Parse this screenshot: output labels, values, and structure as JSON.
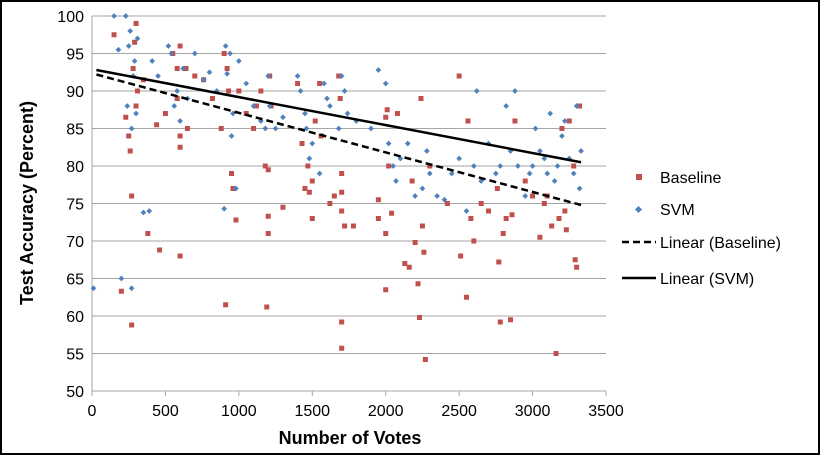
{
  "chart_data": {
    "type": "scatter",
    "title": "",
    "xlabel": "Number of Votes",
    "ylabel": "Test Accuracy (Percent)",
    "xlim": [
      0,
      3500
    ],
    "ylim": [
      50,
      100
    ],
    "xticks": [
      0,
      500,
      1000,
      1500,
      2000,
      2500,
      3000,
      3500
    ],
    "yticks": [
      50,
      55,
      60,
      65,
      70,
      75,
      80,
      85,
      90,
      95,
      100
    ],
    "grid": "horizontal",
    "legend_position": "right",
    "colors": {
      "baseline": "#c0504d",
      "svm": "#4f81bd",
      "trend": "#000000"
    },
    "series": [
      {
        "name": "Baseline",
        "marker": "square",
        "points": [
          [
            150,
            97.5
          ],
          [
            200,
            63.3
          ],
          [
            230,
            86.5
          ],
          [
            250,
            84
          ],
          [
            260,
            82
          ],
          [
            270,
            76
          ],
          [
            270,
            58.8
          ],
          [
            280,
            93
          ],
          [
            290,
            96.5
          ],
          [
            300,
            99
          ],
          [
            300,
            88
          ],
          [
            310,
            90
          ],
          [
            350,
            91.5
          ],
          [
            380,
            71
          ],
          [
            440,
            85.5
          ],
          [
            460,
            68.8
          ],
          [
            500,
            87
          ],
          [
            550,
            95
          ],
          [
            580,
            93
          ],
          [
            580,
            89
          ],
          [
            600,
            84
          ],
          [
            600,
            82.5
          ],
          [
            600,
            96
          ],
          [
            600,
            68
          ],
          [
            640,
            93
          ],
          [
            650,
            85
          ],
          [
            700,
            92
          ],
          [
            760,
            91.5
          ],
          [
            820,
            89
          ],
          [
            880,
            85
          ],
          [
            900,
            95
          ],
          [
            910,
            61.5
          ],
          [
            920,
            93
          ],
          [
            930,
            90
          ],
          [
            950,
            79
          ],
          [
            960,
            77
          ],
          [
            980,
            72.8
          ],
          [
            1000,
            90
          ],
          [
            1050,
            87
          ],
          [
            1100,
            85
          ],
          [
            1120,
            88
          ],
          [
            1150,
            90
          ],
          [
            1180,
            80
          ],
          [
            1190,
            61.2
          ],
          [
            1200,
            79.5
          ],
          [
            1200,
            73.3
          ],
          [
            1200,
            71
          ],
          [
            1210,
            92
          ],
          [
            1220,
            88
          ],
          [
            1300,
            74.5
          ],
          [
            1400,
            91
          ],
          [
            1430,
            83
          ],
          [
            1450,
            77
          ],
          [
            1470,
            80
          ],
          [
            1480,
            76.5
          ],
          [
            1500,
            73
          ],
          [
            1500,
            78
          ],
          [
            1520,
            86
          ],
          [
            1550,
            91
          ],
          [
            1560,
            84
          ],
          [
            1620,
            75
          ],
          [
            1650,
            76
          ],
          [
            1680,
            92
          ],
          [
            1690,
            89
          ],
          [
            1700,
            79
          ],
          [
            1700,
            76.5
          ],
          [
            1700,
            74
          ],
          [
            1700,
            59.2
          ],
          [
            1700,
            55.7
          ],
          [
            1720,
            72
          ],
          [
            1780,
            72
          ],
          [
            1950,
            75.5
          ],
          [
            1950,
            73
          ],
          [
            2000,
            86.5
          ],
          [
            2000,
            71
          ],
          [
            2000,
            63.5
          ],
          [
            2010,
            87.5
          ],
          [
            2020,
            80
          ],
          [
            2040,
            73.7
          ],
          [
            2080,
            87
          ],
          [
            2130,
            67
          ],
          [
            2160,
            66.5
          ],
          [
            2180,
            78
          ],
          [
            2200,
            69.8
          ],
          [
            2220,
            64.3
          ],
          [
            2230,
            59.8
          ],
          [
            2240,
            89
          ],
          [
            2250,
            72
          ],
          [
            2260,
            68.5
          ],
          [
            2270,
            54.2
          ],
          [
            2300,
            80
          ],
          [
            2420,
            75
          ],
          [
            2500,
            92
          ],
          [
            2510,
            68
          ],
          [
            2550,
            62.5
          ],
          [
            2560,
            86
          ],
          [
            2580,
            73
          ],
          [
            2600,
            70
          ],
          [
            2650,
            75
          ],
          [
            2700,
            74
          ],
          [
            2760,
            77
          ],
          [
            2770,
            67.2
          ],
          [
            2780,
            59.2
          ],
          [
            2800,
            71
          ],
          [
            2820,
            73
          ],
          [
            2850,
            59.5
          ],
          [
            2860,
            73.5
          ],
          [
            2880,
            86
          ],
          [
            2950,
            78
          ],
          [
            3000,
            76
          ],
          [
            3050,
            70.5
          ],
          [
            3080,
            75
          ],
          [
            3100,
            76
          ],
          [
            3130,
            72
          ],
          [
            3160,
            55
          ],
          [
            3180,
            73
          ],
          [
            3200,
            85
          ],
          [
            3220,
            74
          ],
          [
            3230,
            71.5
          ],
          [
            3250,
            86
          ],
          [
            3280,
            80
          ],
          [
            3290,
            67.5
          ],
          [
            3300,
            66.5
          ],
          [
            3320,
            88
          ]
        ]
      },
      {
        "name": "SVM",
        "marker": "diamond",
        "points": [
          [
            10,
            63.7
          ],
          [
            150,
            100
          ],
          [
            180,
            95.5
          ],
          [
            200,
            65
          ],
          [
            230,
            100
          ],
          [
            240,
            88
          ],
          [
            250,
            96
          ],
          [
            260,
            98
          ],
          [
            270,
            63.7
          ],
          [
            270,
            85
          ],
          [
            280,
            92
          ],
          [
            290,
            94
          ],
          [
            300,
            87
          ],
          [
            310,
            97
          ],
          [
            350,
            73.8
          ],
          [
            390,
            74
          ],
          [
            410,
            94
          ],
          [
            450,
            92
          ],
          [
            520,
            96
          ],
          [
            540,
            95
          ],
          [
            560,
            88
          ],
          [
            580,
            90
          ],
          [
            600,
            86
          ],
          [
            620,
            93
          ],
          [
            650,
            89
          ],
          [
            700,
            95
          ],
          [
            760,
            91.5
          ],
          [
            800,
            92.5
          ],
          [
            850,
            90
          ],
          [
            900,
            74.3
          ],
          [
            910,
            96
          ],
          [
            920,
            92.3
          ],
          [
            940,
            95
          ],
          [
            950,
            84
          ],
          [
            960,
            87
          ],
          [
            980,
            77
          ],
          [
            1000,
            94
          ],
          [
            1050,
            91
          ],
          [
            1100,
            88
          ],
          [
            1150,
            86
          ],
          [
            1180,
            85
          ],
          [
            1200,
            92
          ],
          [
            1210,
            88
          ],
          [
            1250,
            85
          ],
          [
            1300,
            86.5
          ],
          [
            1400,
            92
          ],
          [
            1420,
            90
          ],
          [
            1450,
            87
          ],
          [
            1460,
            85
          ],
          [
            1480,
            81
          ],
          [
            1500,
            83
          ],
          [
            1550,
            79
          ],
          [
            1580,
            91
          ],
          [
            1600,
            89
          ],
          [
            1620,
            88
          ],
          [
            1680,
            85
          ],
          [
            1700,
            92
          ],
          [
            1720,
            90
          ],
          [
            1740,
            87
          ],
          [
            1800,
            86
          ],
          [
            1900,
            85
          ],
          [
            1950,
            92.8
          ],
          [
            2000,
            91
          ],
          [
            2020,
            83
          ],
          [
            2050,
            80
          ],
          [
            2070,
            78
          ],
          [
            2100,
            81
          ],
          [
            2150,
            83
          ],
          [
            2200,
            76
          ],
          [
            2250,
            77
          ],
          [
            2280,
            82
          ],
          [
            2300,
            79
          ],
          [
            2350,
            76
          ],
          [
            2400,
            75.5
          ],
          [
            2450,
            79
          ],
          [
            2500,
            81
          ],
          [
            2550,
            74
          ],
          [
            2600,
            80
          ],
          [
            2620,
            90
          ],
          [
            2650,
            78
          ],
          [
            2700,
            83
          ],
          [
            2750,
            79
          ],
          [
            2780,
            80
          ],
          [
            2820,
            88
          ],
          [
            2850,
            82
          ],
          [
            2880,
            90
          ],
          [
            2900,
            80
          ],
          [
            2950,
            76
          ],
          [
            2980,
            79
          ],
          [
            3000,
            80
          ],
          [
            3020,
            85
          ],
          [
            3050,
            82
          ],
          [
            3080,
            81
          ],
          [
            3100,
            79
          ],
          [
            3120,
            87
          ],
          [
            3150,
            78
          ],
          [
            3170,
            80
          ],
          [
            3200,
            84
          ],
          [
            3220,
            86
          ],
          [
            3250,
            81
          ],
          [
            3280,
            79
          ],
          [
            3300,
            88
          ],
          [
            3320,
            77
          ],
          [
            3330,
            82
          ]
        ]
      }
    ],
    "trendlines": [
      {
        "name": "Linear (Baseline)",
        "style": "dashed",
        "from": [
          30,
          92.2
        ],
        "to": [
          3330,
          74.8
        ]
      },
      {
        "name": "Linear (SVM)",
        "style": "solid",
        "from": [
          30,
          92.8
        ],
        "to": [
          3330,
          80.5
        ]
      }
    ],
    "legend": [
      "Baseline",
      "SVM",
      "Linear (Baseline)",
      "Linear (SVM)"
    ]
  }
}
